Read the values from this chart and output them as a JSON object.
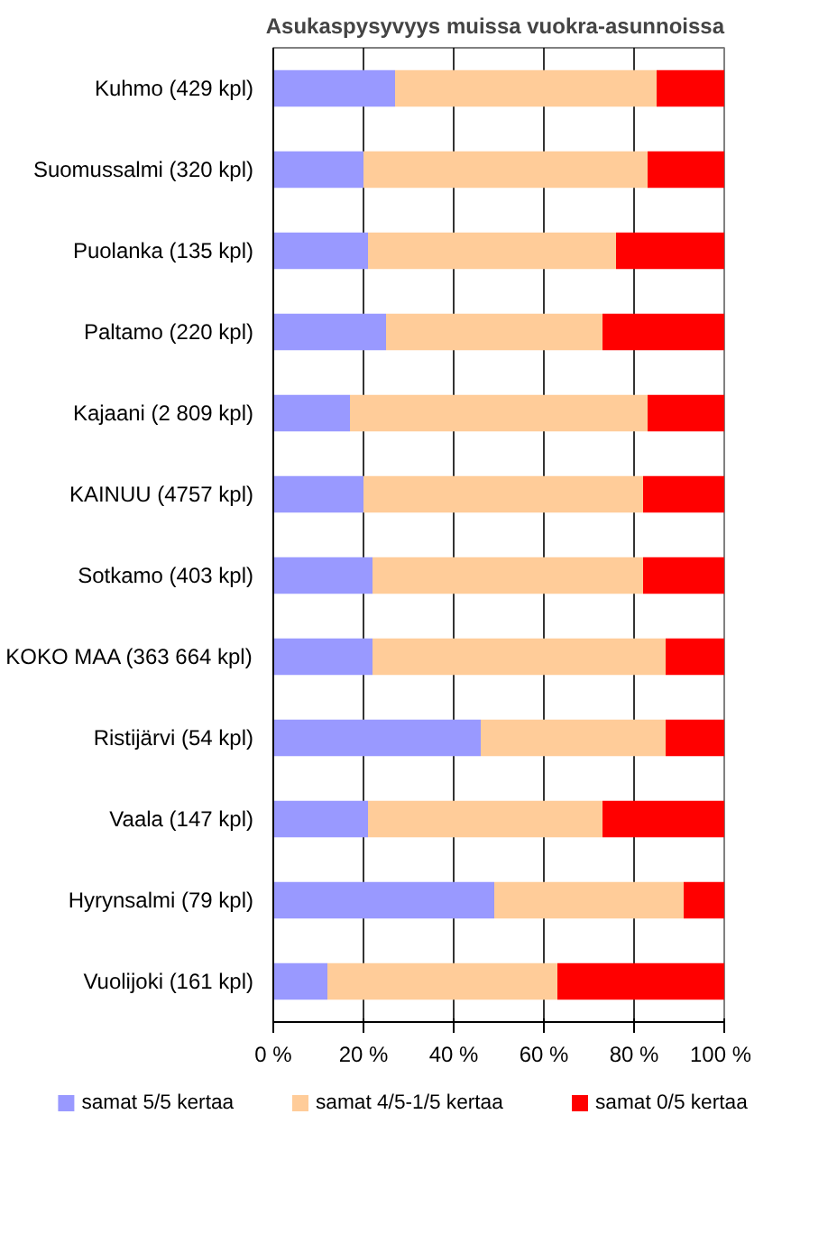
{
  "chart_data": {
    "type": "bar",
    "title": "Asukaspysyvyys muissa vuokra-asunnoissa",
    "orientation": "horizontal",
    "stacked": true,
    "categories": [
      "Kuhmo (429 kpl)",
      "Suomussalmi (320 kpl)",
      "Puolanka (135 kpl)",
      "Paltamo (220 kpl)",
      "Kajaani (2 809 kpl)",
      "KAINUU (4757 kpl)",
      "Sotkamo (403 kpl)",
      "KOKO MAA (363 664 kpl)",
      "Ristijärvi (54 kpl)",
      "Vaala (147 kpl)",
      "Hyrynsalmi (79 kpl)",
      "Vuolijoki (161 kpl)"
    ],
    "series": [
      {
        "name": "samat 5/5 kertaa",
        "color": "#9999ff",
        "values": [
          27,
          20,
          21,
          25,
          17,
          20,
          22,
          22,
          46,
          21,
          49,
          12
        ]
      },
      {
        "name": "samat 4/5-1/5 kertaa",
        "color": "#ffcc99",
        "values": [
          58,
          63,
          55,
          48,
          66,
          62,
          60,
          65,
          41,
          52,
          42,
          51
        ]
      },
      {
        "name": "samat 0/5 kertaa",
        "color": "#ff0000",
        "values": [
          15,
          17,
          24,
          27,
          17,
          18,
          18,
          13,
          13,
          27,
          9,
          37
        ]
      }
    ],
    "xlim": [
      0,
      100
    ],
    "xticks": [
      {
        "value": 0,
        "label": "0 %"
      },
      {
        "value": 20,
        "label": "20 %"
      },
      {
        "value": 40,
        "label": "40 %"
      },
      {
        "value": 60,
        "label": "60 %"
      },
      {
        "value": 80,
        "label": "80 %"
      },
      {
        "value": 100,
        "label": "100 %"
      }
    ],
    "grid": "x",
    "legend": "bottom"
  }
}
